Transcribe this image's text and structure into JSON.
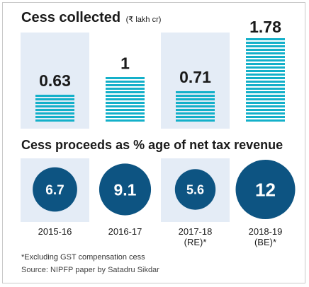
{
  "chart_data": [
    {
      "type": "bar",
      "title": "Cess collected",
      "unit": "(₹ lakh cr)",
      "categories": [
        "2015-16",
        "2016-17",
        "2017-18 (RE)*",
        "2018-19 (BE)*"
      ],
      "values": [
        0.63,
        1,
        0.71,
        1.78
      ],
      "value_labels": [
        "0.63",
        "1",
        "0.71",
        "1.78"
      ],
      "bar_color": "#14b0c9",
      "panel_color": "#e4ecf6"
    },
    {
      "type": "bubble",
      "title": "Cess proceeds as % age of net tax revenue",
      "categories": [
        "2015-16",
        "2016-17",
        "2017-18 (RE)*",
        "2018-19 (BE)*"
      ],
      "values": [
        6.7,
        9.1,
        5.6,
        12
      ],
      "value_labels": [
        "6.7",
        "9.1",
        "5.6",
        "12"
      ],
      "circle_color": "#0d5482"
    }
  ],
  "year_labels": [
    [
      "2015-16"
    ],
    [
      "2016-17"
    ],
    [
      "2017-18",
      "(RE)*"
    ],
    [
      "2018-19",
      "(BE)*"
    ]
  ],
  "footnote": "*Excluding GST compensation cess",
  "source": "Source: NIPFP paper by Satadru Sikdar"
}
